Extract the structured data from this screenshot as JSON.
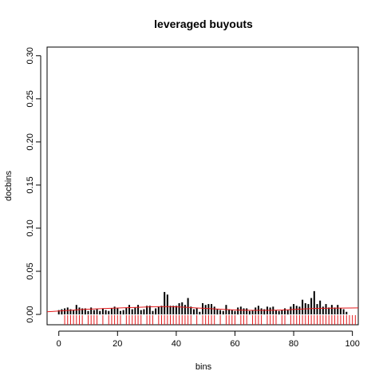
{
  "chart_data": {
    "type": "bar",
    "title": "leveraged buyouts",
    "xlabel": "bins",
    "ylabel": "docbins",
    "xlim": [
      -4,
      102
    ],
    "ylim": [
      -0.012,
      0.31
    ],
    "xticks": [
      0,
      20,
      40,
      60,
      80,
      100
    ],
    "xtick_labels": [
      "0",
      "20",
      "40",
      "60",
      "80",
      "100"
    ],
    "yticks": [
      0.0,
      0.05,
      0.1,
      0.15,
      0.2,
      0.25,
      0.3
    ],
    "ytick_labels": [
      "0.00",
      "0.05",
      "0.10",
      "0.15",
      "0.20",
      "0.25",
      "0.30"
    ],
    "grid": false,
    "bars": {
      "color": "#000000",
      "x": [
        0,
        1,
        2,
        3,
        4,
        5,
        6,
        7,
        8,
        9,
        10,
        11,
        12,
        13,
        14,
        15,
        16,
        17,
        18,
        19,
        20,
        21,
        22,
        23,
        24,
        25,
        26,
        27,
        28,
        29,
        30,
        31,
        32,
        33,
        34,
        35,
        36,
        37,
        38,
        39,
        40,
        41,
        42,
        43,
        44,
        45,
        46,
        47,
        48,
        49,
        50,
        51,
        52,
        53,
        54,
        55,
        56,
        57,
        58,
        59,
        60,
        61,
        62,
        63,
        64,
        65,
        66,
        67,
        68,
        69,
        70,
        71,
        72,
        73,
        74,
        75,
        76,
        77,
        78,
        79,
        80,
        81,
        82,
        83,
        84,
        85,
        86,
        87,
        88,
        89,
        90,
        91,
        92,
        93,
        94,
        95,
        96,
        97,
        98,
        99,
        100
      ],
      "values": [
        0.005,
        0.006,
        0.007,
        0.008,
        0.006,
        0.005,
        0.011,
        0.008,
        0.007,
        0.007,
        0.004,
        0.008,
        0.005,
        0.006,
        0.004,
        0.007,
        0.005,
        0.004,
        0.007,
        0.009,
        0.007,
        0.004,
        0.005,
        0.008,
        0.011,
        0.006,
        0.008,
        0.011,
        0.005,
        0.006,
        0.01,
        0.01,
        0.004,
        0.007,
        0.009,
        0.01,
        0.026,
        0.023,
        0.01,
        0.01,
        0.01,
        0.013,
        0.014,
        0.011,
        0.019,
        0.009,
        0.006,
        0.007,
        0.003,
        0.013,
        0.011,
        0.012,
        0.012,
        0.009,
        0.006,
        0.005,
        0.004,
        0.011,
        0.006,
        0.005,
        0.004,
        0.008,
        0.009,
        0.007,
        0.007,
        0.004,
        0.005,
        0.008,
        0.01,
        0.007,
        0.006,
        0.009,
        0.008,
        0.009,
        0.005,
        0.004,
        0.005,
        0.007,
        0.005,
        0.009,
        0.012,
        0.01,
        0.009,
        0.017,
        0.013,
        0.012,
        0.019,
        0.027,
        0.012,
        0.016,
        0.009,
        0.012,
        0.008,
        0.011,
        0.008,
        0.011,
        0.007,
        0.006,
        0.003,
        0.0,
        0.0
      ]
    },
    "fit_line": {
      "color": "#e41a1c",
      "x": [
        -4,
        10,
        25,
        37,
        50,
        62,
        75,
        88,
        102
      ],
      "y": [
        0.003,
        0.006,
        0.008,
        0.009,
        0.007,
        0.005,
        0.005,
        0.007,
        0.0075
      ]
    },
    "rug": {
      "color": "#e41a1c",
      "x": [
        2,
        3,
        4,
        5,
        6,
        7,
        8,
        10,
        11,
        12,
        13,
        15,
        17,
        18,
        19,
        20,
        21,
        23,
        24,
        25,
        26,
        27,
        28,
        30,
        31,
        32,
        34,
        35,
        36,
        37,
        38,
        39,
        40,
        41,
        42,
        43,
        44,
        45,
        47,
        49,
        50,
        51,
        52,
        53,
        55,
        57,
        58,
        59,
        60,
        62,
        63,
        64,
        66,
        67,
        68,
        69,
        71,
        72,
        73,
        74,
        76,
        77,
        79,
        80,
        81,
        82,
        83,
        84,
        85,
        86,
        87,
        88,
        89,
        90,
        91,
        92,
        93,
        94,
        95,
        96,
        97,
        98,
        99,
        100,
        101
      ]
    }
  }
}
